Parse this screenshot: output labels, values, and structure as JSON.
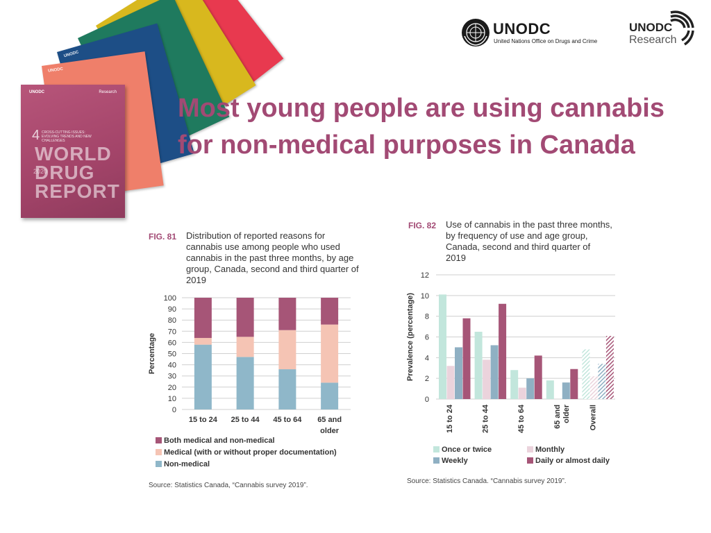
{
  "slide": {
    "title": "Most young people are using cannabis for non-medical purposes in Canada"
  },
  "report_cover": {
    "org": "UNODC",
    "research": "Research",
    "booklet_number": "4",
    "booklet_subtitle": "CROSS-CUTTING ISSUES: EVOLVING TRENDS AND NEW CHALLENGES",
    "title": "WORLD DRUG REPORT",
    "year": "2020"
  },
  "logos": {
    "unodc_name": "UNODC",
    "unodc_sub": "United Nations Office on Drugs and Crime",
    "research_name": "UNODC",
    "research_sub": "Research"
  },
  "fig81": {
    "number": "FIG. 81",
    "caption": "Distribution of reported reasons for cannabis use among people who used cannabis in the past three months, by age group, Canada, second and third quarter of 2019",
    "source": "Source: Statistics Canada, “Cannabis survey 2019”.",
    "legend_marker": "■"
  },
  "fig82": {
    "number": "FIG. 82",
    "caption": "Use of cannabis in the past three months, by frequency of use and age group, Canada, second and third quarter of 2019",
    "source": "Source: Statistics Canada. “Cannabis survey 2019”."
  },
  "chart_data": [
    {
      "type": "bar",
      "stacked": true,
      "categories": [
        "15 to 24",
        "25 to 44",
        "45 to 64",
        "65 and older"
      ],
      "series": [
        {
          "name": "Non-medical",
          "values": [
            58,
            47,
            36,
            24
          ],
          "color": "#8fb7c9"
        },
        {
          "name": "Medical (with or without proper documentation)",
          "values": [
            6,
            18,
            35,
            52
          ],
          "color": "#f5c4b4"
        },
        {
          "name": "Both medical and non-medical",
          "values": [
            36,
            35,
            29,
            24
          ],
          "color": "#a65577"
        }
      ],
      "legend_order": [
        "Both medical and non-medical",
        "Medical (with or without proper documentation)",
        "Non-medical"
      ],
      "ylabel": "Percentage",
      "ylim": [
        0,
        100
      ],
      "yticks": [
        0,
        10,
        20,
        30,
        40,
        50,
        60,
        70,
        80,
        90,
        100
      ],
      "grid": true,
      "legend_position": "bottom"
    },
    {
      "type": "bar",
      "categories": [
        "15 to 24",
        "25 to 44",
        "45 to 64",
        "65 and older",
        "Overall"
      ],
      "series": [
        {
          "name": "Once or twice",
          "values": [
            10.1,
            6.5,
            2.8,
            1.8,
            4.8
          ],
          "color": "#c2e6dc"
        },
        {
          "name": "Monthly",
          "values": [
            3.2,
            3.8,
            1.1,
            0,
            2.2
          ],
          "color": "#ebd3dc"
        },
        {
          "name": "Weekly",
          "values": [
            5.0,
            5.2,
            2.0,
            1.6,
            3.4
          ],
          "color": "#8fb0c3"
        },
        {
          "name": "Daily or almost daily",
          "values": [
            7.8,
            9.2,
            4.2,
            2.9,
            6.1
          ],
          "color": "#a65577"
        }
      ],
      "overall_hatched": true,
      "ylabel": "Prevalence (percentage)",
      "ylim": [
        0,
        12
      ],
      "yticks": [
        0,
        2,
        4,
        6,
        8,
        10,
        12
      ],
      "grid": true,
      "legend_position": "bottom"
    }
  ]
}
